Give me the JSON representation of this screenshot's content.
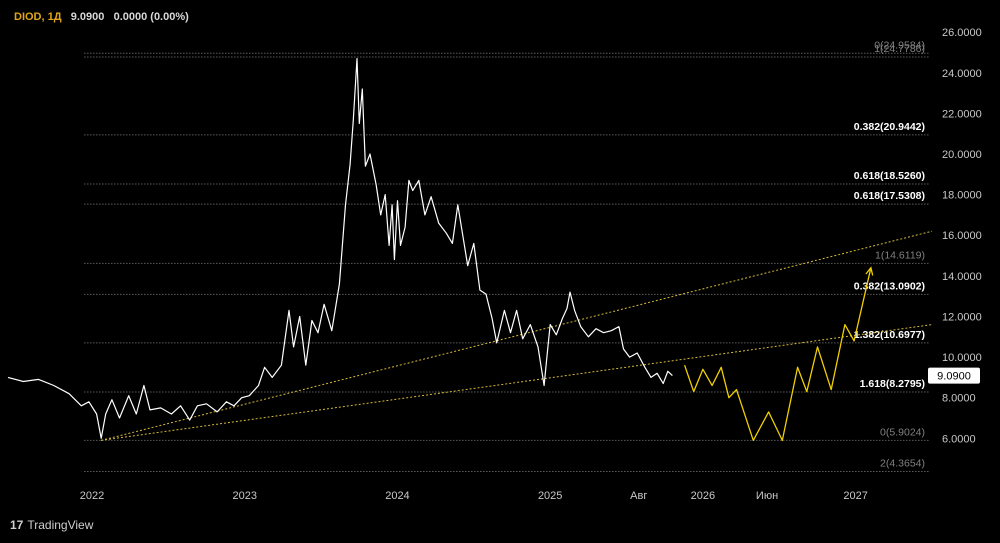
{
  "header": {
    "symbol": "DIOD, 1Д",
    "price": "9.0900",
    "change": "0.0000 (0.00%)"
  },
  "brand": {
    "mark": "17",
    "name": "TradingView"
  },
  "colors": {
    "background": "#000000",
    "price_line": "#ffffff",
    "projection": "#f0d000",
    "trendline": "#d4b93a",
    "fib_line": "#8c8c8c",
    "label_bright": "#ffffff",
    "label_dim": "#808080",
    "axis_text": "#c8c8c8"
  },
  "chart_data": {
    "type": "line",
    "ylim": [
      3.85,
      26.5
    ],
    "xlim": [
      2021.45,
      2027.5
    ],
    "y_ticks": [
      "6.0000",
      "8.0000",
      "10.0000",
      "12.0000",
      "14.0000",
      "16.0000",
      "18.0000",
      "20.0000",
      "22.0000",
      "24.0000",
      "26.0000"
    ],
    "y_tick_values": [
      6,
      8,
      10,
      12,
      14,
      16,
      18,
      20,
      22,
      24,
      26
    ],
    "x_ticks": [
      {
        "label": "2022",
        "x": 2022.0
      },
      {
        "label": "2023",
        "x": 2023.0
      },
      {
        "label": "2024",
        "x": 2024.0
      },
      {
        "label": "2025",
        "x": 2025.0
      },
      {
        "label": "Авг",
        "x": 2025.58
      },
      {
        "label": "2026",
        "x": 2026.0
      },
      {
        "label": "Июн",
        "x": 2026.42
      },
      {
        "label": "2027",
        "x": 2027.0
      }
    ],
    "current_price": {
      "label": "9.0900",
      "value": 9.09
    },
    "series": [
      {
        "points": [
          [
            2021.45,
            9.0
          ],
          [
            2021.55,
            8.8
          ],
          [
            2021.65,
            8.9
          ],
          [
            2021.75,
            8.6
          ],
          [
            2021.85,
            8.2
          ],
          [
            2021.93,
            7.6
          ],
          [
            2021.98,
            7.8
          ],
          [
            2022.03,
            7.2
          ],
          [
            2022.06,
            6.0
          ],
          [
            2022.09,
            7.2
          ],
          [
            2022.13,
            7.9
          ],
          [
            2022.18,
            7.0
          ],
          [
            2022.24,
            8.1
          ],
          [
            2022.29,
            7.2
          ],
          [
            2022.34,
            8.6
          ],
          [
            2022.38,
            7.4
          ],
          [
            2022.45,
            7.5
          ],
          [
            2022.52,
            7.2
          ],
          [
            2022.58,
            7.6
          ],
          [
            2022.64,
            6.9
          ],
          [
            2022.69,
            7.6
          ],
          [
            2022.75,
            7.7
          ],
          [
            2022.82,
            7.3
          ],
          [
            2022.88,
            7.8
          ],
          [
            2022.93,
            7.6
          ],
          [
            2022.98,
            8.0
          ],
          [
            2023.03,
            8.1
          ],
          [
            2023.09,
            8.6
          ],
          [
            2023.13,
            9.5
          ],
          [
            2023.18,
            9.0
          ],
          [
            2023.24,
            9.6
          ],
          [
            2023.29,
            12.3
          ],
          [
            2023.32,
            10.5
          ],
          [
            2023.36,
            12.0
          ],
          [
            2023.4,
            9.6
          ],
          [
            2023.44,
            11.8
          ],
          [
            2023.48,
            11.2
          ],
          [
            2023.52,
            12.6
          ],
          [
            2023.57,
            11.3
          ],
          [
            2023.62,
            13.6
          ],
          [
            2023.66,
            17.5
          ],
          [
            2023.69,
            19.5
          ],
          [
            2023.71,
            21.6
          ],
          [
            2023.735,
            24.7
          ],
          [
            2023.75,
            21.5
          ],
          [
            2023.77,
            23.2
          ],
          [
            2023.79,
            19.4
          ],
          [
            2023.82,
            20.0
          ],
          [
            2023.86,
            18.5
          ],
          [
            2023.89,
            17.0
          ],
          [
            2023.92,
            18.0
          ],
          [
            2023.945,
            15.5
          ],
          [
            2023.965,
            17.5
          ],
          [
            2023.98,
            14.8
          ],
          [
            2024.0,
            17.7
          ],
          [
            2024.02,
            15.5
          ],
          [
            2024.05,
            16.4
          ],
          [
            2024.075,
            18.7
          ],
          [
            2024.1,
            18.2
          ],
          [
            2024.14,
            18.7
          ],
          [
            2024.18,
            17.0
          ],
          [
            2024.22,
            17.9
          ],
          [
            2024.27,
            16.6
          ],
          [
            2024.32,
            16.1
          ],
          [
            2024.36,
            15.6
          ],
          [
            2024.395,
            17.5
          ],
          [
            2024.43,
            15.9
          ],
          [
            2024.46,
            14.5
          ],
          [
            2024.5,
            15.6
          ],
          [
            2024.54,
            13.3
          ],
          [
            2024.58,
            13.1
          ],
          [
            2024.62,
            11.9
          ],
          [
            2024.65,
            10.7
          ],
          [
            2024.7,
            12.3
          ],
          [
            2024.74,
            11.2
          ],
          [
            2024.78,
            12.3
          ],
          [
            2024.82,
            10.9
          ],
          [
            2024.87,
            11.6
          ],
          [
            2024.92,
            10.5
          ],
          [
            2024.96,
            8.6
          ],
          [
            2024.985,
            10.5
          ],
          [
            2025.0,
            11.6
          ],
          [
            2025.04,
            11.1
          ],
          [
            2025.08,
            11.9
          ],
          [
            2025.11,
            12.4
          ],
          [
            2025.13,
            13.2
          ],
          [
            2025.16,
            12.3
          ],
          [
            2025.2,
            11.5
          ],
          [
            2025.25,
            11.0
          ],
          [
            2025.3,
            11.4
          ],
          [
            2025.35,
            11.2
          ],
          [
            2025.4,
            11.3
          ],
          [
            2025.45,
            11.5
          ],
          [
            2025.48,
            10.4
          ],
          [
            2025.52,
            10.0
          ],
          [
            2025.57,
            10.2
          ],
          [
            2025.62,
            9.5
          ],
          [
            2025.66,
            9.0
          ],
          [
            2025.7,
            9.2
          ],
          [
            2025.74,
            8.7
          ],
          [
            2025.77,
            9.3
          ],
          [
            2025.8,
            9.09
          ]
        ]
      }
    ],
    "projection": [
      [
        2025.88,
        9.6
      ],
      [
        2025.94,
        8.3
      ],
      [
        2026.0,
        9.4
      ],
      [
        2026.06,
        8.6
      ],
      [
        2026.12,
        9.5
      ],
      [
        2026.17,
        8.0
      ],
      [
        2026.22,
        8.4
      ],
      [
        2026.33,
        5.9
      ],
      [
        2026.43,
        7.3
      ],
      [
        2026.52,
        5.9
      ],
      [
        2026.62,
        9.5
      ],
      [
        2026.68,
        8.3
      ],
      [
        2026.75,
        10.5
      ],
      [
        2026.84,
        8.4
      ],
      [
        2026.93,
        11.6
      ],
      [
        2026.99,
        10.8
      ],
      [
        2027.1,
        14.4
      ]
    ],
    "trendlines": [
      {
        "from": [
          2022.06,
          5.9
        ],
        "to": [
          2027.5,
          16.2
        ]
      },
      {
        "from": [
          2022.06,
          5.9
        ],
        "to": [
          2027.5,
          11.6
        ]
      }
    ],
    "fib_levels": [
      {
        "label": "0(24.9584)",
        "value": 24.9584,
        "bright": false
      },
      {
        "label": "1(24.7786)",
        "value": 24.7786,
        "bright": false
      },
      {
        "label": "0.382(20.9442)",
        "value": 20.9442,
        "bright": true
      },
      {
        "label": "0.618(18.5260)",
        "value": 18.526,
        "bright": true
      },
      {
        "label": "0.618(17.5308)",
        "value": 17.5308,
        "bright": true
      },
      {
        "label": "1(14.6119)",
        "value": 14.6119,
        "bright": false
      },
      {
        "label": "0.382(13.0902)",
        "value": 13.0902,
        "bright": true
      },
      {
        "label": "1.382(10.6977)",
        "value": 10.6977,
        "bright": true
      },
      {
        "label": "1.618(8.2795)",
        "value": 8.2795,
        "bright": true
      },
      {
        "label": "0(5.9024)",
        "value": 5.9024,
        "bright": false
      },
      {
        "label": "2(4.3654)",
        "value": 4.3654,
        "bright": false
      }
    ]
  }
}
